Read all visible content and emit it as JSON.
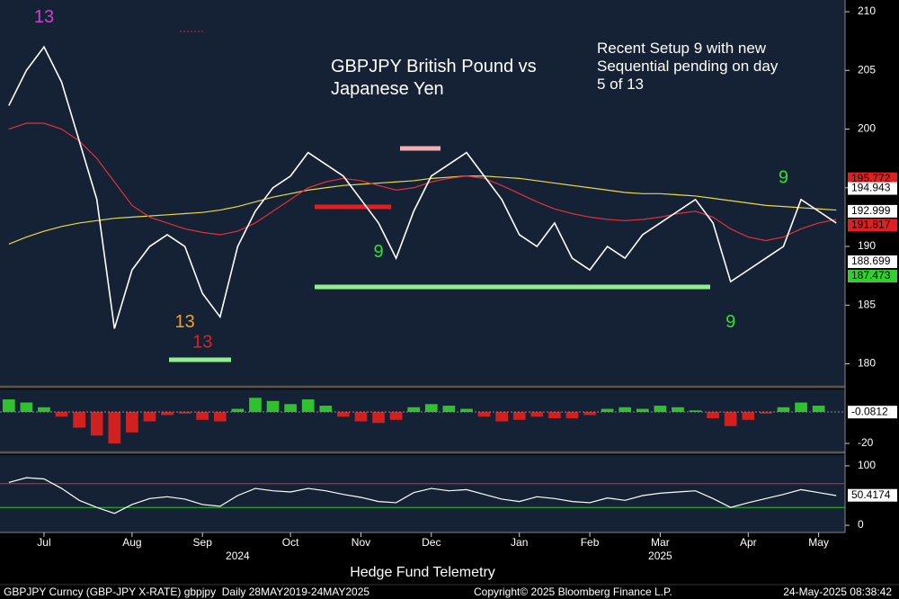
{
  "chart_data": [
    {
      "type": "line",
      "title": "GBPJPY British Pound vs Japanese Yen",
      "annotation": "Recent Setup 9 with new Sequential pending on day 5 of 13",
      "categories": [
        null,
        null,
        "Jul",
        null,
        null,
        null,
        null,
        "Aug",
        null,
        null,
        null,
        "Sep",
        null,
        null,
        null,
        null,
        "Oct",
        null,
        null,
        null,
        "Nov",
        null,
        null,
        null,
        "Dec",
        null,
        null,
        null,
        null,
        "Jan",
        null,
        null,
        null,
        "Feb",
        null,
        null,
        null,
        "Mar",
        null,
        null,
        null,
        null,
        "Apr",
        null,
        null,
        null,
        "May",
        null
      ],
      "year_categories": [
        null,
        null,
        null,
        null,
        null,
        null,
        null,
        null,
        null,
        null,
        null,
        null,
        null,
        "2024",
        null,
        null,
        null,
        null,
        null,
        null,
        null,
        null,
        null,
        null,
        null,
        null,
        null,
        null,
        null,
        null,
        null,
        null,
        null,
        null,
        null,
        null,
        null,
        "2025",
        null,
        null,
        null,
        null,
        null,
        null,
        null,
        null,
        null,
        null
      ],
      "series": [
        {
          "color": "#ffffff",
          "values": [
            202,
            205,
            207,
            204,
            199,
            194,
            183,
            188,
            190,
            191,
            190,
            186,
            184,
            190,
            193,
            195,
            196,
            198,
            197,
            196,
            194,
            192,
            189,
            193,
            196,
            197,
            198,
            196,
            194,
            191,
            190,
            192,
            189,
            188,
            190,
            189,
            191,
            192,
            193,
            194,
            192,
            187,
            188,
            189,
            190,
            194,
            193,
            192
          ]
        },
        {
          "color": "#e0303a",
          "values": [
            200,
            200.5,
            200.5,
            200,
            199,
            197.5,
            195.5,
            193.5,
            192.5,
            192,
            191.5,
            191.2,
            191,
            191.3,
            192,
            193,
            194,
            195,
            195.5,
            195.8,
            195.6,
            195.2,
            194.8,
            195,
            195.5,
            195.8,
            196,
            195.8,
            195.2,
            194.5,
            193.8,
            193.2,
            192.8,
            192.5,
            192.3,
            192.2,
            192.3,
            192.5,
            192.8,
            193,
            192.5,
            191.5,
            190.8,
            190.5,
            190.8,
            191.5,
            192,
            192.3
          ]
        },
        {
          "color": "#e8d84a",
          "values": [
            190.2,
            190.8,
            191.3,
            191.7,
            192,
            192.2,
            192.4,
            192.5,
            192.6,
            192.7,
            192.8,
            192.9,
            193.1,
            193.4,
            193.8,
            194.2,
            194.5,
            194.8,
            195,
            195.2,
            195.3,
            195.4,
            195.5,
            195.6,
            195.8,
            195.9,
            196,
            196,
            195.9,
            195.8,
            195.6,
            195.4,
            195.2,
            195,
            194.8,
            194.6,
            194.5,
            194.5,
            194.4,
            194.3,
            194.1,
            193.9,
            193.7,
            193.5,
            193.4,
            193.3,
            193.2,
            193.1
          ]
        }
      ],
      "markers": [
        {
          "label": "13",
          "x": 2,
          "y": 209.5,
          "color": "#d040d0"
        },
        {
          "label": "13",
          "x": 10,
          "y": 183.5,
          "color": "#f0a030"
        },
        {
          "label": "13",
          "x": 11,
          "y": 181.8,
          "color": "#e02020"
        },
        {
          "label": "9",
          "x": 41,
          "y": 183.5,
          "color": "#30e030"
        },
        {
          "label": "9",
          "x": 44,
          "y": 195.8,
          "color": "#30e030"
        },
        {
          "label": "9",
          "x": 21,
          "y": 189.5,
          "color": "#30e030"
        }
      ],
      "ylim": [
        178.2,
        211
      ],
      "yticks": [
        180,
        185,
        190,
        195,
        200,
        205,
        210
      ],
      "levels": [
        {
          "value": 195.772,
          "bg": "#e02020",
          "fg": "#000000"
        },
        {
          "value": 194.943,
          "bg": "#ffffff",
          "fg": "#000000"
        },
        {
          "value": 192.999,
          "bg": "#ffffff",
          "fg": "#000000"
        },
        {
          "value": 191.817,
          "bg": "#e02020",
          "fg": "#000000"
        },
        {
          "value": 188.699,
          "bg": "#ffffff",
          "fg": "#000000"
        },
        {
          "value": 187.473,
          "bg": "#30d030",
          "fg": "#000000"
        }
      ]
    },
    {
      "type": "bar",
      "values": [
        8,
        6,
        3,
        -3,
        -10,
        -15,
        -20,
        -13,
        -6,
        -2,
        -1,
        -5,
        -6,
        2,
        9,
        7,
        5,
        8,
        4,
        -3,
        -6,
        -7,
        -5,
        3,
        5,
        4,
        2,
        -3,
        -6,
        -5,
        -3,
        -4,
        -4,
        -2,
        2,
        3,
        2,
        4,
        3,
        1,
        -4,
        -9,
        -5,
        -1,
        3,
        6,
        4,
        0
      ],
      "positive_color": "#30c030",
      "negative_color": "#d02020",
      "ylim": [
        -24,
        14.9
      ],
      "yticks": [
        -20
      ],
      "last_value": -0.0812
    },
    {
      "type": "line",
      "values": [
        72,
        80,
        78,
        62,
        42,
        30,
        20,
        35,
        45,
        48,
        44,
        35,
        32,
        50,
        62,
        58,
        56,
        62,
        58,
        52,
        47,
        40,
        38,
        55,
        62,
        58,
        60,
        52,
        44,
        40,
        48,
        45,
        40,
        38,
        46,
        42,
        50,
        54,
        56,
        58,
        45,
        30,
        38,
        45,
        52,
        60,
        55,
        50
      ],
      "color": "#ffffff",
      "ylim": [
        -12,
        115
      ],
      "yticks": [
        0,
        100
      ],
      "reference_lines": [
        {
          "value": 70,
          "color": "#d03030"
        },
        {
          "value": 30,
          "color": "#30c030"
        }
      ],
      "last_value": 50.4174
    }
  ],
  "footer": {
    "caption": "Hedge Fund Telemetry",
    "security": "GBPJPY Curncy (GBP-JPY X-RATE) gbpjpy  Daily 28MAY2019-24MAY2025",
    "copyright": "Copyright© 2025 Bloomberg Finance L.P.",
    "timestamp": "24-May-2025 08:38:42"
  }
}
